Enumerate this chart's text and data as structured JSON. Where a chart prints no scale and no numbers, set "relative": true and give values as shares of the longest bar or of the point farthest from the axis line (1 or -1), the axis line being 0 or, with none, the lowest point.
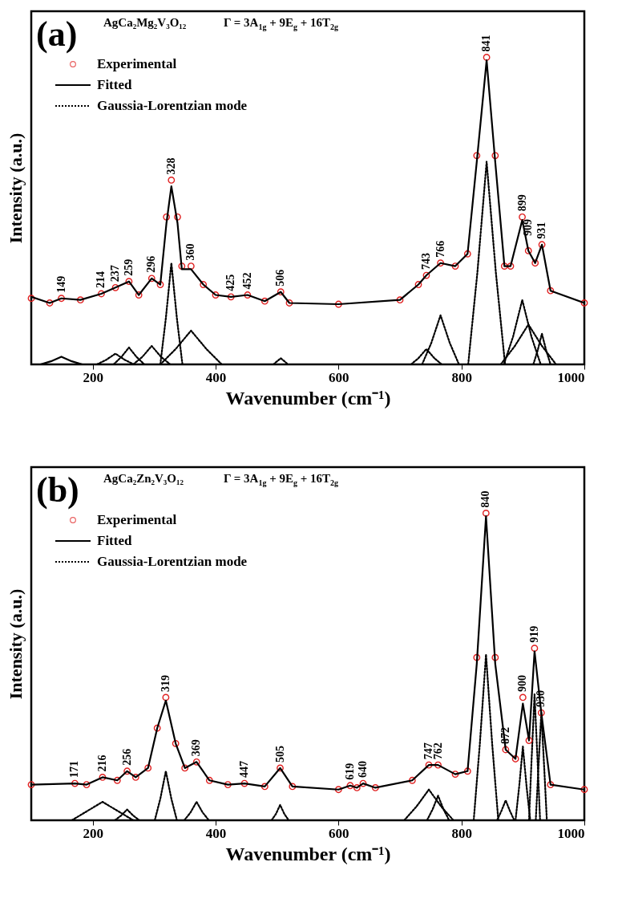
{
  "chart_data": [
    {
      "type": "line",
      "title": "(a)",
      "xlabel": "Wavenumber (cm⁻¹)",
      "ylabel": "Intensity (a.u.)",
      "relative": true,
      "legend": "top left",
      "xlim": [
        100,
        1000
      ],
      "xticks": [
        200,
        400,
        600,
        800,
        1000
      ],
      "x": [
        100,
        130,
        149,
        180,
        214,
        237,
        259,
        275,
        296,
        310,
        320,
        328,
        338,
        345,
        360,
        380,
        400,
        425,
        452,
        480,
        506,
        520,
        600,
        700,
        730,
        743,
        766,
        790,
        810,
        825,
        841,
        855,
        870,
        880,
        899,
        909,
        920,
        931,
        945,
        1000
      ],
      "series": [
        {
          "name": "Experimental",
          "type": "scatter",
          "marker": "circle",
          "color": "#e02020",
          "values": [
            0.215,
            0.2,
            0.215,
            0.21,
            0.23,
            0.25,
            0.27,
            0.226,
            0.28,
            0.26,
            0.48,
            0.6,
            0.48,
            0.32,
            0.32,
            0.26,
            0.226,
            0.22,
            0.226,
            0.206,
            0.236,
            0.2,
            0.196,
            0.21,
            0.26,
            0.29,
            0.33,
            0.32,
            0.36,
            0.68,
            1.0,
            0.68,
            0.32,
            0.32,
            0.48,
            0.37,
            0.33,
            0.39,
            0.24,
            0.2
          ]
        },
        {
          "name": "Fitted",
          "type": "line",
          "line_style": "solid",
          "color": "#000000",
          "values": [
            0.22,
            0.2,
            0.215,
            0.21,
            0.23,
            0.25,
            0.27,
            0.226,
            0.28,
            0.26,
            0.46,
            0.58,
            0.46,
            0.31,
            0.31,
            0.26,
            0.226,
            0.22,
            0.226,
            0.206,
            0.236,
            0.2,
            0.196,
            0.21,
            0.26,
            0.29,
            0.33,
            0.32,
            0.36,
            0.66,
            0.99,
            0.66,
            0.32,
            0.32,
            0.47,
            0.37,
            0.33,
            0.39,
            0.24,
            0.2
          ]
        },
        {
          "name": "Gaussia-Lorentzian mode",
          "type": "line",
          "line_style": "dotted",
          "color": "#000000",
          "x": [
            811,
            826,
            841,
            856,
            871
          ],
          "values": [
            0,
            0.3,
            0.66,
            0.3,
            0
          ]
        },
        {
          "type": "line",
          "line_style": "solid",
          "color": "#000000",
          "x": [
            115,
            132,
            149,
            166,
            183
          ],
          "values": [
            0,
            0.01,
            0.025,
            0.01,
            0
          ]
        },
        {
          "type": "line",
          "line_style": "dotted",
          "color": "#000000",
          "x": [
            207,
            222,
            237,
            252,
            267
          ],
          "values": [
            0,
            0.015,
            0.035,
            0.015,
            0
          ]
        },
        {
          "type": "line",
          "line_style": "dotted",
          "color": "#000000",
          "x": [
            234,
            247,
            259,
            271,
            284
          ],
          "values": [
            0,
            0.025,
            0.055,
            0.025,
            0
          ]
        },
        {
          "type": "line",
          "line_style": "dotted",
          "color": "#000000",
          "x": [
            266,
            281,
            296,
            311,
            326
          ],
          "values": [
            0,
            0.025,
            0.06,
            0.025,
            0
          ]
        },
        {
          "type": "line",
          "line_style": "dotted",
          "color": "#000000",
          "x": [
            310,
            319,
            328,
            337,
            346
          ],
          "values": [
            0,
            0.15,
            0.33,
            0.15,
            0
          ]
        },
        {
          "type": "line",
          "line_style": "dotted",
          "color": "#000000",
          "x": [
            310,
            335,
            360,
            385,
            410
          ],
          "values": [
            0,
            0.05,
            0.11,
            0.05,
            0
          ]
        },
        {
          "type": "line",
          "line_style": "dotted",
          "color": "#000000",
          "x": [
            494,
            500,
            506,
            512,
            518
          ],
          "values": [
            0,
            0.01,
            0.02,
            0.01,
            0
          ]
        },
        {
          "type": "line",
          "line_style": "dotted",
          "color": "#000000",
          "x": [
            718,
            730,
            743,
            756,
            768
          ],
          "values": [
            0,
            0.02,
            0.05,
            0.02,
            0
          ]
        },
        {
          "type": "line",
          "line_style": "dotted",
          "color": "#000000",
          "x": [
            736,
            751,
            766,
            781,
            796
          ],
          "values": [
            0,
            0.07,
            0.16,
            0.07,
            0
          ]
        },
        {
          "type": "line",
          "line_style": "dotted",
          "color": "#000000",
          "x": [
            869,
            884,
            899,
            914,
            929
          ],
          "values": [
            0,
            0.09,
            0.21,
            0.09,
            0
          ]
        },
        {
          "type": "line",
          "line_style": "dotted",
          "color": "#000000",
          "x": [
            864,
            887,
            909,
            931,
            954
          ],
          "values": [
            0,
            0.06,
            0.13,
            0.06,
            0
          ]
        },
        {
          "type": "line",
          "line_style": "dotted",
          "color": "#000000",
          "x": [
            917,
            924,
            931,
            938,
            945
          ],
          "values": [
            0,
            0.045,
            0.1,
            0.045,
            0
          ]
        }
      ],
      "annotations": [
        "AgCa₂Mg₂V₃O₁₂",
        "Γ = 3A$_{1g}$ + 9E$_{g}$ + 16T$_{2g}$",
        {
          "text": "149",
          "x": 149,
          "y": 0.215
        },
        {
          "text": "214",
          "x": 214,
          "y": 0.23
        },
        {
          "text": "237",
          "x": 237,
          "y": 0.25
        },
        {
          "text": "259",
          "x": 259,
          "y": 0.27
        },
        {
          "text": "296",
          "x": 296,
          "y": 0.28
        },
        {
          "text": "328",
          "x": 328,
          "y": 0.6
        },
        {
          "text": "360",
          "x": 360,
          "y": 0.32
        },
        {
          "text": "425",
          "x": 425,
          "y": 0.22
        },
        {
          "text": "452",
          "x": 452,
          "y": 0.226
        },
        {
          "text": "506",
          "x": 506,
          "y": 0.236
        },
        {
          "text": "743",
          "x": 743,
          "y": 0.29
        },
        {
          "text": "766",
          "x": 766,
          "y": 0.33
        },
        {
          "text": "841",
          "x": 841,
          "y": 1.0
        },
        {
          "text": "899",
          "x": 899,
          "y": 0.48
        },
        {
          "text": "909",
          "x": 909,
          "y": 0.4
        },
        {
          "text": "931",
          "x": 931,
          "y": 0.39
        }
      ]
    },
    {
      "type": "line",
      "title": "(b)",
      "xlabel": "Wavenumber (cm⁻¹)",
      "ylabel": "Intensity (a.u.)",
      "relative": true,
      "legend": "top left",
      "xlim": [
        100,
        1000
      ],
      "xticks": [
        200,
        400,
        600,
        800,
        1000
      ],
      "x": [
        100,
        171,
        190,
        216,
        240,
        256,
        270,
        290,
        305,
        319,
        335,
        350,
        369,
        390,
        420,
        447,
        480,
        505,
        525,
        600,
        619,
        630,
        640,
        660,
        720,
        747,
        762,
        790,
        810,
        825,
        840,
        855,
        872,
        888,
        900,
        910,
        919,
        930,
        945,
        1000
      ],
      "series": [
        {
          "name": "Experimental",
          "type": "scatter",
          "marker": "circle",
          "color": "#e02020",
          "values": [
            0.116,
            0.12,
            0.116,
            0.14,
            0.13,
            0.16,
            0.14,
            0.17,
            0.3,
            0.4,
            0.25,
            0.17,
            0.19,
            0.13,
            0.116,
            0.12,
            0.11,
            0.17,
            0.11,
            0.1,
            0.113,
            0.106,
            0.12,
            0.106,
            0.13,
            0.18,
            0.18,
            0.15,
            0.16,
            0.53,
            1.0,
            0.53,
            0.23,
            0.2,
            0.4,
            0.26,
            0.56,
            0.35,
            0.116,
            0.1
          ]
        },
        {
          "name": "Fitted",
          "type": "line",
          "line_style": "solid",
          "color": "#000000",
          "values": [
            0.116,
            0.12,
            0.116,
            0.14,
            0.13,
            0.16,
            0.14,
            0.17,
            0.3,
            0.39,
            0.25,
            0.17,
            0.19,
            0.13,
            0.116,
            0.12,
            0.11,
            0.17,
            0.11,
            0.1,
            0.113,
            0.106,
            0.12,
            0.106,
            0.13,
            0.18,
            0.18,
            0.15,
            0.16,
            0.51,
            0.99,
            0.51,
            0.23,
            0.2,
            0.38,
            0.26,
            0.55,
            0.35,
            0.116,
            0.1
          ]
        },
        {
          "name": "Gaussia-Lorentzian mode",
          "type": "line",
          "line_style": "dotted",
          "color": "#000000",
          "x": [
            820,
            830,
            840,
            850,
            860
          ],
          "values": [
            0,
            0.25,
            0.54,
            0.25,
            0
          ]
        },
        {
          "type": "line",
          "line_style": "dotted",
          "color": "#000000",
          "x": [
            166,
            191,
            216,
            241,
            266
          ],
          "values": [
            0,
            0.03,
            0.06,
            0.03,
            0
          ]
        },
        {
          "type": "line",
          "line_style": "dotted",
          "color": "#000000",
          "x": [
            236,
            246,
            256,
            266,
            276
          ],
          "values": [
            0,
            0.015,
            0.035,
            0.015,
            0
          ]
        },
        {
          "type": "line",
          "line_style": "dotted",
          "color": "#000000",
          "x": [
            301,
            310,
            319,
            328,
            337
          ],
          "values": [
            0,
            0.07,
            0.16,
            0.07,
            0
          ]
        },
        {
          "type": "line",
          "line_style": "dotted",
          "color": "#000000",
          "x": [
            349,
            359,
            369,
            379,
            389
          ],
          "values": [
            0,
            0.025,
            0.06,
            0.025,
            0
          ]
        },
        {
          "type": "line",
          "line_style": "dotted",
          "color": "#000000",
          "x": [
            491,
            498,
            505,
            512,
            519
          ],
          "values": [
            0,
            0.02,
            0.05,
            0.02,
            0
          ]
        },
        {
          "type": "line",
          "line_style": "dotted",
          "color": "#000000",
          "x": [
            707,
            727,
            747,
            767,
            787
          ],
          "values": [
            0,
            0.045,
            0.1,
            0.045,
            0
          ]
        },
        {
          "type": "line",
          "line_style": "dotted",
          "color": "#000000",
          "x": [
            744,
            753,
            762,
            771,
            780
          ],
          "values": [
            0,
            0.035,
            0.08,
            0.035,
            0
          ]
        },
        {
          "type": "line",
          "line_style": "dotted",
          "color": "#000000",
          "x": [
            858,
            865,
            872,
            879,
            886
          ],
          "values": [
            0,
            0.03,
            0.065,
            0.03,
            0
          ]
        },
        {
          "type": "line",
          "line_style": "dotted",
          "color": "#000000",
          "x": [
            888,
            894,
            900,
            906,
            912
          ],
          "values": [
            0,
            0.11,
            0.24,
            0.11,
            0
          ]
        },
        {
          "type": "line",
          "line_style": "dotted",
          "color": "#000000",
          "x": [
            910,
            914,
            919,
            924,
            928
          ],
          "values": [
            0,
            0.19,
            0.41,
            0.19,
            0
          ]
        },
        {
          "type": "line",
          "line_style": "dotted",
          "color": "#000000",
          "x": [
            921,
            925,
            930,
            935,
            939
          ],
          "values": [
            0,
            0.16,
            0.35,
            0.16,
            0
          ]
        }
      ],
      "annotations": [
        "AgCa₂Zn₂V₃O₁₂",
        "Γ = 3A$_{1g}$ + 9E$_{g}$ + 16T$_{2g}$",
        {
          "text": "171",
          "x": 171,
          "y": 0.12
        },
        {
          "text": "216",
          "x": 216,
          "y": 0.14
        },
        {
          "text": "256",
          "x": 256,
          "y": 0.16
        },
        {
          "text": "319",
          "x": 319,
          "y": 0.4
        },
        {
          "text": "369",
          "x": 369,
          "y": 0.19
        },
        {
          "text": "447",
          "x": 447,
          "y": 0.12
        },
        {
          "text": "505",
          "x": 505,
          "y": 0.17
        },
        {
          "text": "619",
          "x": 619,
          "y": 0.113
        },
        {
          "text": "640",
          "x": 640,
          "y": 0.12
        },
        {
          "text": "747",
          "x": 747,
          "y": 0.18
        },
        {
          "text": "762",
          "x": 762,
          "y": 0.18
        },
        {
          "text": "840",
          "x": 840,
          "y": 1.0
        },
        {
          "text": "872",
          "x": 872,
          "y": 0.23
        },
        {
          "text": "900",
          "x": 900,
          "y": 0.4
        },
        {
          "text": "919",
          "x": 919,
          "y": 0.56
        },
        {
          "text": "930",
          "x": 930,
          "y": 0.35
        }
      ]
    }
  ]
}
